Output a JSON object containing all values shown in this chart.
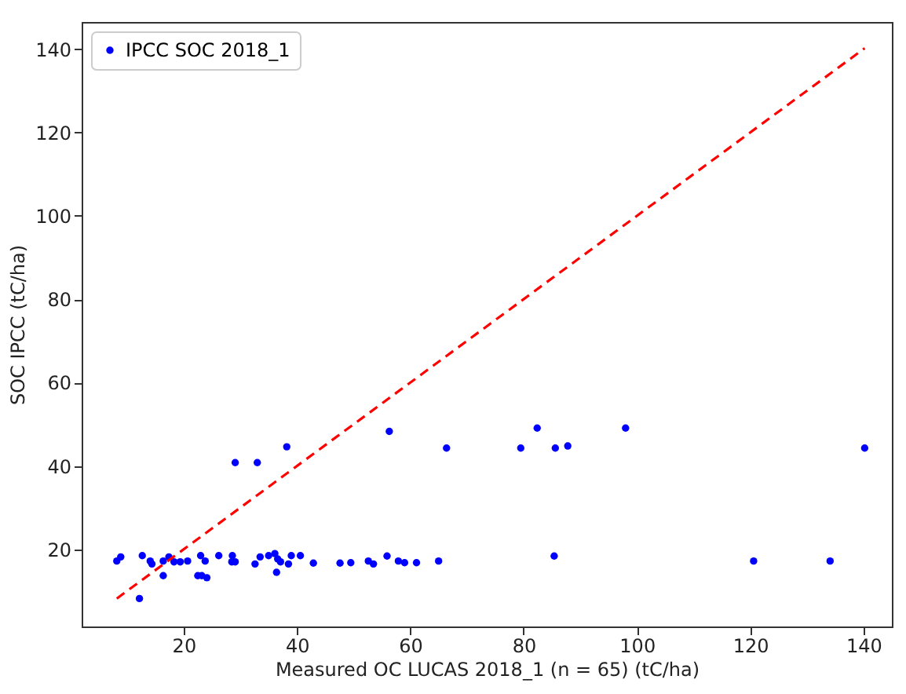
{
  "chart_data": {
    "type": "scatter",
    "xlabel": "Measured OC LUCAS 2018_1 (n = 65) (tC/ha)",
    "ylabel": "SOC IPCC (tC/ha)",
    "xlim": [
      2,
      145
    ],
    "ylim": [
      1.5,
      146.5
    ],
    "xticks": [
      20,
      40,
      60,
      80,
      100,
      120,
      140
    ],
    "yticks": [
      20,
      40,
      60,
      80,
      100,
      120,
      140
    ],
    "grid": false,
    "legend": "top left",
    "series": [
      {
        "name": "IPCC SOC 2018_1",
        "color": "#0000ff",
        "marker": "circle",
        "x": [
          8.2,
          8.9,
          12.2,
          12.7,
          14.1,
          14.4,
          16.4,
          16.4,
          17.4,
          18.3,
          19.4,
          20.7,
          22.5,
          23.2,
          24.1,
          23.0,
          23.8,
          26.2,
          28.6,
          28.5,
          29.1,
          29.1,
          33.0,
          32.6,
          33.5,
          35.0,
          36.1,
          36.6,
          37.1,
          36.4,
          38.2,
          38.5,
          39.0,
          40.6,
          42.9,
          47.6,
          49.5,
          52.6,
          53.5,
          56.3,
          55.9,
          57.9,
          59.0,
          61.1,
          65.0,
          66.4,
          79.5,
          82.4,
          85.6,
          87.8,
          85.4,
          98.0,
          120.6,
          134.1,
          140.2
        ],
        "values": [
          17.2,
          18.2,
          8.2,
          18.5,
          17.2,
          16.5,
          17.2,
          13.7,
          18.2,
          17.0,
          17.0,
          17.2,
          13.7,
          13.7,
          13.2,
          18.5,
          17.2,
          18.5,
          18.5,
          17.0,
          17.0,
          40.8,
          40.8,
          16.5,
          18.2,
          18.5,
          19.0,
          17.7,
          17.0,
          14.5,
          44.6,
          16.5,
          18.5,
          18.5,
          16.7,
          16.7,
          16.8,
          17.2,
          16.5,
          48.3,
          18.4,
          17.2,
          16.8,
          16.8,
          17.2,
          44.3,
          44.3,
          49.1,
          44.3,
          44.8,
          18.4,
          49.1,
          17.2,
          17.2,
          44.3
        ]
      },
      {
        "type": "line",
        "color": "#ff0000",
        "line_style": "dashed",
        "marker": "none",
        "x": [
          8.2,
          140.2
        ],
        "values": [
          8.2,
          140.2
        ]
      }
    ]
  }
}
